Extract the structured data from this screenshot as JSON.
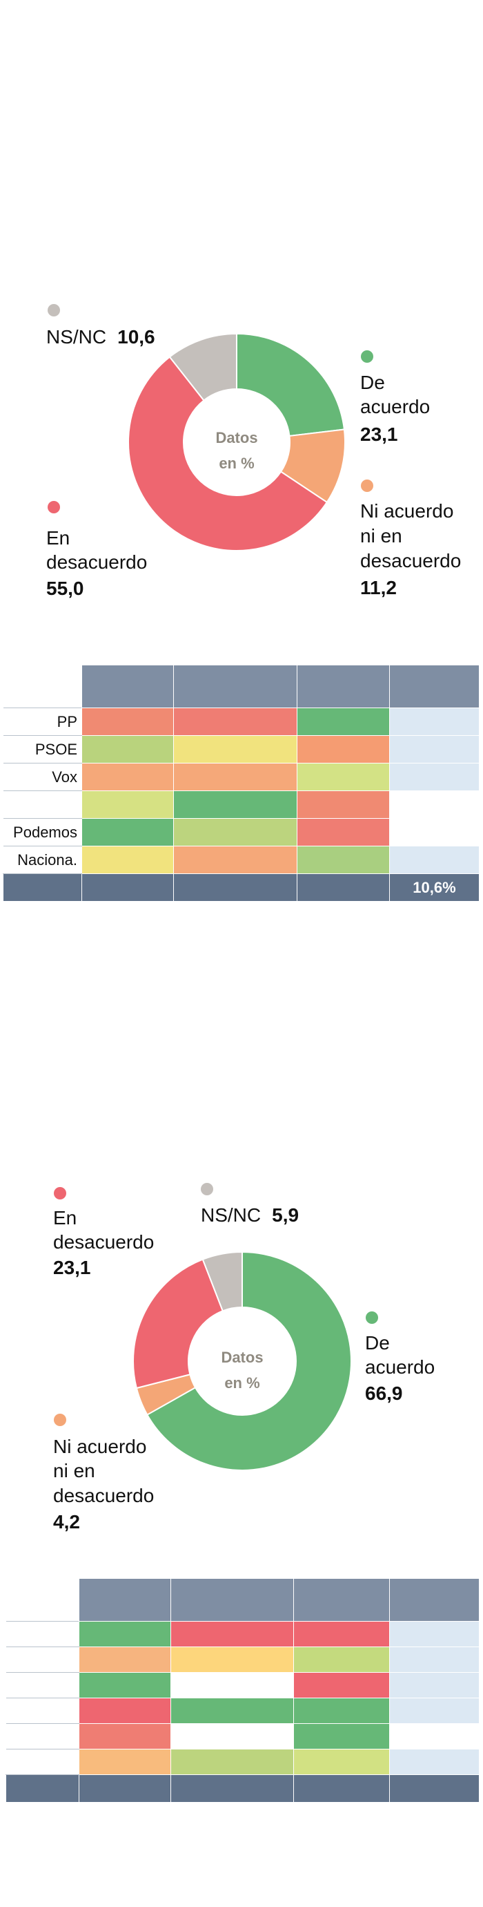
{
  "charts": [
    {
      "center_label": [
        "Datos",
        "en %"
      ],
      "segments": [
        {
          "key": "acuerdo",
          "label_lines": [
            "De",
            "acuerdo"
          ],
          "value_text": "23,1",
          "color": "#66b877"
        },
        {
          "key": "ni",
          "label_lines": [
            "Ni acuerdo",
            "ni en",
            "desacuerdo"
          ],
          "value_text": "11,2",
          "color": "#f4a676"
        },
        {
          "key": "desacuerdo",
          "label_lines": [
            "En",
            "desacuerdo"
          ],
          "value_text": "55,0",
          "color": "#ee6670"
        },
        {
          "key": "nsnc",
          "label_lines": [
            "NS/NC"
          ],
          "value_text": "10,6",
          "color": "#c4bfbb"
        }
      ]
    },
    {
      "center_label": [
        "Datos",
        "en %"
      ],
      "segments": [
        {
          "key": "acuerdo",
          "label_lines": [
            "De",
            "acuerdo"
          ],
          "value_text": "66,9",
          "color": "#66b877"
        },
        {
          "key": "ni",
          "label_lines": [
            "Ni acuerdo",
            "ni en",
            "desacuerdo"
          ],
          "value_text": "4,2",
          "color": "#f4a676"
        },
        {
          "key": "desacuerdo",
          "label_lines": [
            "En",
            "desacuerdo"
          ],
          "value_text": "23,1",
          "color": "#ee6670"
        },
        {
          "key": "nsnc",
          "label_lines": [
            "NS/NC"
          ],
          "value_text": "5,9",
          "color": "#c4bfbb"
        }
      ]
    }
  ],
  "tables": [
    {
      "rows": [
        {
          "label": "PP",
          "cells": [
            "#f08a72",
            "#ef7d73",
            "#66b877",
            "#dce8f3"
          ]
        },
        {
          "label": "PSOE",
          "cells": [
            "#b9d37d",
            "#f1e37e",
            "#f59c72",
            "#dce8f3"
          ]
        },
        {
          "label": "Vox",
          "cells": [
            "#f5a879",
            "#f5a879",
            "#d3e285",
            "#dce8f3"
          ]
        },
        {
          "label": "",
          "cells": [
            "#d6e183",
            "#66b877",
            "#f08a72",
            "#ffffff"
          ]
        },
        {
          "label": "Podemos",
          "cells": [
            "#66b877",
            "#bcd47e",
            "#ef7d73",
            "#ffffff"
          ]
        },
        {
          "label": "Naciona.",
          "cells": [
            "#f1e37e",
            "#f5a879",
            "#a9cf80",
            "#dce8f3"
          ]
        }
      ],
      "footer": [
        "",
        "",
        "",
        "10,6%"
      ]
    },
    {
      "rows": [
        {
          "label": "",
          "cells": [
            "#66b877",
            "#ee6670",
            "#ee6670",
            "#dce8f3"
          ]
        },
        {
          "label": "",
          "cells": [
            "#f6b47f",
            "#fdd67c",
            "#c4da7e",
            "#dce8f3"
          ]
        },
        {
          "label": "",
          "cells": [
            "#66b877",
            "#ffffff",
            "#ee6670",
            "#dce8f3"
          ]
        },
        {
          "label": "",
          "cells": [
            "#ee6670",
            "#66b877",
            "#66b877",
            "#dce8f3"
          ]
        },
        {
          "label": "",
          "cells": [
            "#ef7d73",
            "#ffffff",
            "#66b877",
            "#ffffff"
          ]
        },
        {
          "label": "",
          "cells": [
            "#f8bb7d",
            "#bcd47e",
            "#d2e183",
            "#dce8f3"
          ]
        }
      ],
      "footer": [
        "",
        "",
        "",
        ""
      ]
    }
  ],
  "chart_data": [
    {
      "type": "pie",
      "title": "",
      "categories": [
        "De acuerdo",
        "Ni acuerdo ni en desacuerdo",
        "En desacuerdo",
        "NS/NC"
      ],
      "values": [
        23.1,
        11.2,
        55.0,
        10.6
      ]
    },
    {
      "type": "pie",
      "title": "",
      "categories": [
        "De acuerdo",
        "Ni acuerdo ni en desacuerdo",
        "En desacuerdo",
        "NS/NC"
      ],
      "values": [
        66.9,
        4.2,
        23.1,
        5.9
      ]
    },
    {
      "type": "heatmap",
      "row_labels": [
        "PP",
        "PSOE",
        "Vox",
        "",
        "Podemos",
        "Naciona."
      ],
      "footer_values": [
        "",
        "",
        "",
        "10,6%"
      ]
    },
    {
      "type": "heatmap",
      "row_labels": [
        "",
        "",
        "",
        "",
        "",
        ""
      ],
      "footer_values": [
        "",
        "",
        "",
        ""
      ]
    }
  ]
}
